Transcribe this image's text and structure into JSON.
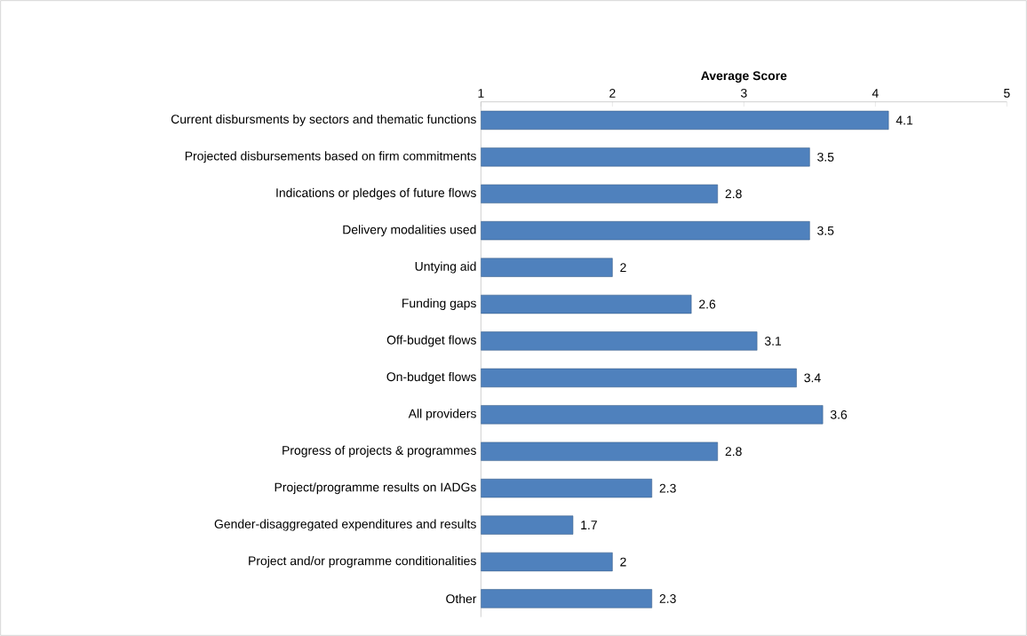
{
  "chart_data": {
    "type": "bar",
    "orientation": "horizontal",
    "xlabel": "Average Score",
    "categories": [
      "Current disbursments by sectors and thematic functions",
      "Projected disbursements based on firm commitments",
      "Indications or pledges of future flows",
      "Delivery modalities used",
      "Untying aid",
      "Funding gaps",
      "Off-budget flows",
      "On-budget flows",
      "All providers",
      "Progress of projects & programmes",
      "Project/programme results on IADGs",
      "Gender-disaggregated expenditures and results",
      "Project and/or programme conditionalities",
      "Other"
    ],
    "values": [
      4.1,
      3.5,
      2.8,
      3.5,
      2,
      2.6,
      3.1,
      3.4,
      3.6,
      2.8,
      2.3,
      1.7,
      2,
      2.3
    ],
    "color": "#4f81bd",
    "xlim": [
      1,
      5
    ],
    "xticks": [
      1,
      2,
      3,
      4,
      5
    ],
    "data_labels": true,
    "grid": false
  }
}
